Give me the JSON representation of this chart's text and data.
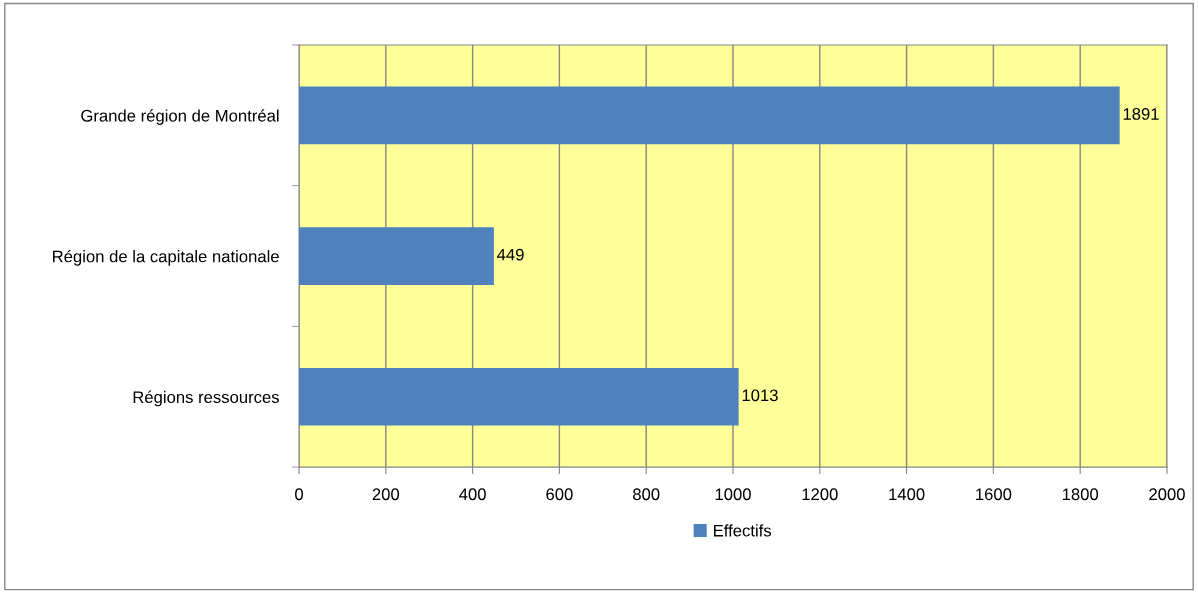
{
  "chart_data": {
    "type": "bar",
    "orientation": "horizontal",
    "categories": [
      "Grande région de Montréal",
      "Région de la capitale nationale",
      "Régions ressources"
    ],
    "series": [
      {
        "name": "Effectifs",
        "color": "#4f81bd",
        "values": [
          1891,
          449,
          1013
        ]
      }
    ],
    "xlim": [
      0,
      2000
    ],
    "xticks": [
      0,
      200,
      400,
      600,
      800,
      1000,
      1200,
      1400,
      1600,
      1800,
      2000
    ],
    "grid": "x",
    "legend": "bottom",
    "data_labels": true
  }
}
